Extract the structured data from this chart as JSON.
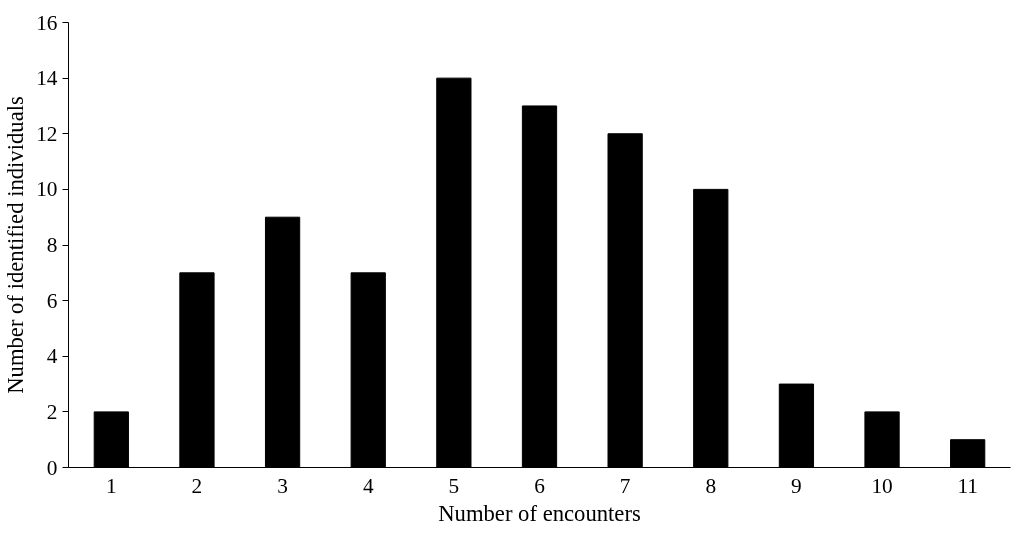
{
  "chart_data": {
    "type": "bar",
    "xlabel": "Number of encounters",
    "ylabel": "Number of identified individuals",
    "categories": [
      "1",
      "2",
      "3",
      "4",
      "5",
      "6",
      "7",
      "8",
      "9",
      "10",
      "11"
    ],
    "values": [
      2,
      7,
      9,
      7,
      14,
      13,
      12,
      10,
      3,
      2,
      1
    ],
    "color": "#000000",
    "ylim": [
      0,
      16
    ],
    "yticks": [
      0,
      2,
      4,
      6,
      8,
      10,
      12,
      14,
      16
    ],
    "grid": false
  }
}
